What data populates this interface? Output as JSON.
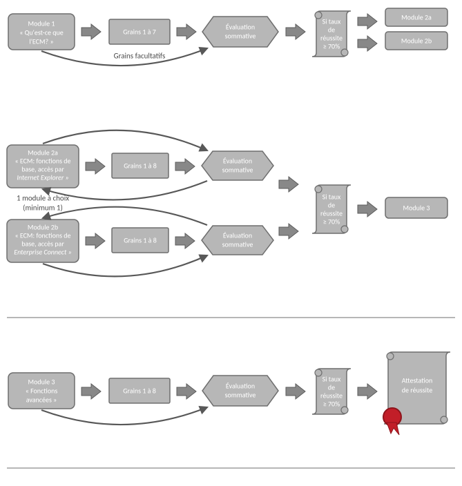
{
  "colors": {
    "node_fill": "#b7b7b7",
    "node_stroke": "#6e6e6e",
    "arrow_fill": "#888888",
    "arrow_stroke": "#5b5b5b",
    "curve_stroke": "#585858",
    "divider": "#6e6e6e",
    "text_white": "#ffffff",
    "caption_text": "#4a4a4a",
    "seal_red": "#c21e28",
    "seal_red_dark": "#8e141b"
  },
  "sizes": {
    "title_font": 10,
    "caption_font": 11
  },
  "row1": {
    "module1_l1": "Module 1",
    "module1_l2": "« Qu'est-ce que",
    "module1_l3": "l'ECM? »",
    "grains": "Grains 1 à 7",
    "eval_l1": "Évaluation",
    "eval_l2": "sommative",
    "scroll_l1": "Si taux",
    "scroll_l2": "de",
    "scroll_l3": "réussite",
    "scroll_l4": "≥ 70%",
    "module2a": "Module 2a",
    "module2b": "Module 2b",
    "caption": "Grains facultatifs"
  },
  "row2": {
    "module2a_l1": "Module 2a",
    "module2a_l2": "« ECM: fonctions de",
    "module2a_l3": "base, accès par",
    "module2a_l4": "Internet Explorer »",
    "module2b_l1": "Module 2b",
    "module2b_l2": "« ECM: fonctions de",
    "module2b_l3": "base, accès par",
    "module2b_l4": "Enterprise Connect »",
    "grainsA": "Grains 1 à 8",
    "grainsB": "Grains 1 à 8",
    "evalA_l1": "Évaluation",
    "evalA_l2": "sommative",
    "evalB_l1": "Évaluation",
    "evalB_l2": "sommative",
    "scroll_l1": "Si taux",
    "scroll_l2": "de",
    "scroll_l3": "réussite",
    "scroll_l4": "≥ 70%",
    "module3": "Module 3",
    "caption_l1": "1 module à choix",
    "caption_l2": "(minimum 1)"
  },
  "row3": {
    "module3_l1": "Module 3",
    "module3_l2": "« Fonctions",
    "module3_l3": "avancées »",
    "grains": "Grains 1 à 8",
    "eval_l1": "Évaluation",
    "eval_l2": "sommative",
    "scroll_l1": "Si taux",
    "scroll_l2": "de",
    "scroll_l3": "réussite",
    "scroll_l4": "≥ 70%",
    "att_l1": "Attestation",
    "att_l2": "de réussite"
  }
}
